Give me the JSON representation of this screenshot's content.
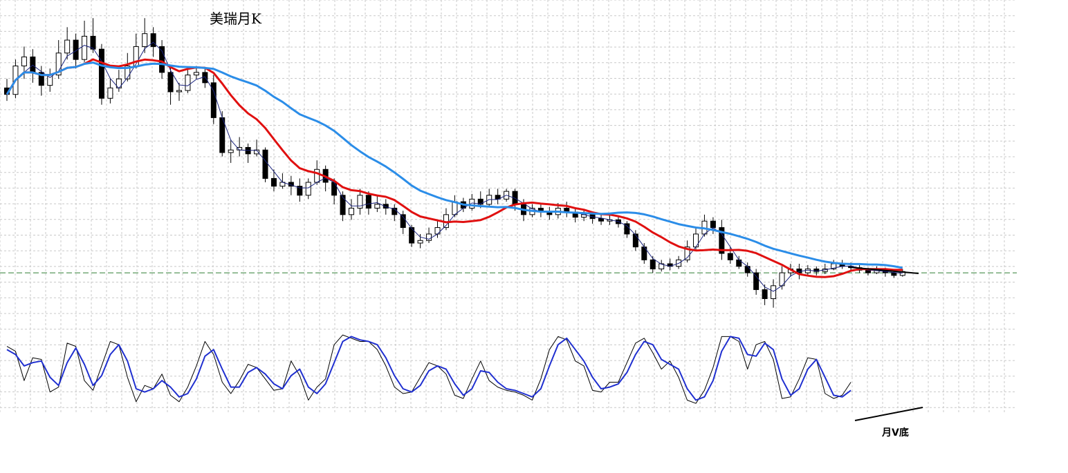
{
  "chart_data": {
    "type": "candlestick",
    "title": "美瑞月K",
    "annotations": [
      {
        "text": "月V底"
      }
    ],
    "grid": true,
    "price_panel": {
      "ylim": [
        1.3,
        24.8
      ],
      "reference_line": 4.5,
      "candles": [
        [
          18.8,
          18.3,
          19.5,
          17.8
        ],
        [
          18.3,
          20.5,
          21.0,
          18.0
        ],
        [
          20.5,
          21.2,
          22.0,
          19.5
        ],
        [
          21.2,
          20.0,
          21.8,
          19.2
        ],
        [
          20.0,
          19.0,
          20.5,
          18.2
        ],
        [
          19.0,
          19.8,
          20.3,
          18.5
        ],
        [
          19.8,
          21.5,
          22.5,
          19.5
        ],
        [
          21.5,
          22.5,
          23.5,
          21.0
        ],
        [
          22.5,
          21.0,
          23.0,
          20.3
        ],
        [
          21.0,
          22.8,
          24.0,
          20.8
        ],
        [
          22.8,
          21.8,
          24.2,
          21.5
        ],
        [
          21.8,
          18.0,
          22.2,
          17.5
        ],
        [
          18.0,
          18.8,
          19.5,
          17.6
        ],
        [
          18.8,
          19.5,
          20.2,
          18.5
        ],
        [
          19.5,
          20.5,
          21.5,
          19.3
        ],
        [
          20.5,
          22.0,
          23.0,
          20.3
        ],
        [
          22.0,
          23.0,
          24.2,
          21.5
        ],
        [
          23.0,
          22.0,
          23.5,
          21.2
        ],
        [
          22.0,
          20.0,
          22.5,
          19.5
        ],
        [
          20.0,
          18.5,
          20.5,
          17.5
        ],
        [
          18.5,
          18.6,
          19.2,
          17.8
        ],
        [
          18.6,
          19.8,
          20.2,
          18.4
        ],
        [
          19.8,
          20.0,
          20.5,
          19.5
        ],
        [
          20.0,
          19.2,
          20.3,
          18.8
        ],
        [
          19.2,
          16.5,
          19.8,
          16.0
        ],
        [
          16.5,
          13.8,
          17.0,
          13.5
        ],
        [
          13.8,
          14.0,
          14.8,
          13.0
        ],
        [
          14.0,
          14.2,
          15.0,
          13.5
        ],
        [
          14.2,
          13.7,
          14.5,
          13.0
        ],
        [
          13.7,
          14.0,
          14.8,
          13.5
        ],
        [
          14.0,
          11.8,
          14.2,
          11.5
        ],
        [
          11.8,
          11.2,
          12.5,
          10.8
        ],
        [
          11.2,
          11.5,
          12.2,
          11.0
        ],
        [
          11.5,
          11.2,
          12.0,
          10.5
        ],
        [
          11.2,
          10.5,
          11.8,
          10.0
        ],
        [
          10.5,
          11.5,
          11.8,
          10.2
        ],
        [
          11.5,
          12.5,
          13.2,
          11.3
        ],
        [
          12.5,
          11.5,
          12.8,
          10.8
        ],
        [
          11.5,
          10.5,
          11.8,
          9.8
        ],
        [
          10.5,
          9.0,
          10.8,
          8.5
        ],
        [
          9.0,
          9.5,
          10.2,
          8.6
        ],
        [
          9.5,
          10.5,
          11.0,
          9.0
        ],
        [
          10.5,
          9.5,
          10.8,
          9.0
        ],
        [
          9.5,
          9.8,
          10.5,
          9.2
        ],
        [
          9.8,
          9.5,
          10.2,
          9.0
        ],
        [
          9.5,
          9.0,
          9.8,
          8.5
        ],
        [
          9.0,
          8.0,
          9.3,
          7.5
        ],
        [
          8.0,
          6.8,
          8.2,
          6.5
        ],
        [
          6.8,
          7.0,
          7.5,
          6.4
        ],
        [
          7.0,
          7.5,
          8.0,
          6.8
        ],
        [
          7.5,
          8.0,
          8.5,
          7.2
        ],
        [
          8.0,
          9.0,
          9.5,
          7.8
        ],
        [
          9.0,
          10.0,
          10.5,
          8.8
        ],
        [
          10.0,
          9.5,
          10.3,
          9.2
        ],
        [
          9.5,
          10.2,
          10.6,
          9.3
        ],
        [
          10.2,
          9.8,
          10.8,
          9.5
        ],
        [
          9.8,
          10.5,
          11.0,
          9.6
        ],
        [
          10.5,
          10.2,
          11.0,
          9.8
        ],
        [
          10.2,
          10.8,
          11.0,
          10.0
        ],
        [
          10.8,
          9.8,
          11.0,
          9.3
        ],
        [
          9.8,
          9.0,
          10.2,
          8.5
        ],
        [
          9.0,
          9.5,
          9.8,
          8.8
        ],
        [
          9.5,
          9.2,
          9.8,
          8.8
        ],
        [
          9.2,
          9.0,
          9.6,
          8.6
        ],
        [
          9.0,
          9.5,
          9.9,
          8.7
        ],
        [
          9.5,
          9.2,
          10.0,
          8.8
        ],
        [
          9.2,
          8.8,
          9.5,
          8.4
        ],
        [
          8.8,
          9.0,
          9.4,
          8.5
        ],
        [
          9.0,
          8.7,
          9.2,
          8.3
        ],
        [
          8.7,
          8.5,
          9.0,
          8.2
        ],
        [
          8.5,
          8.6,
          9.0,
          8.2
        ],
        [
          8.6,
          8.3,
          8.9,
          8.0
        ],
        [
          8.3,
          7.5,
          8.5,
          7.2
        ],
        [
          7.5,
          6.5,
          7.8,
          6.2
        ],
        [
          6.5,
          5.5,
          6.8,
          5.2
        ],
        [
          5.5,
          4.8,
          5.8,
          4.5
        ],
        [
          4.8,
          5.2,
          5.5,
          4.6
        ],
        [
          5.2,
          5.0,
          5.6,
          4.7
        ],
        [
          5.0,
          5.5,
          5.8,
          4.8
        ],
        [
          5.5,
          6.5,
          7.0,
          5.3
        ],
        [
          6.5,
          7.5,
          8.0,
          6.2
        ],
        [
          7.5,
          8.5,
          9.0,
          7.3
        ],
        [
          8.5,
          8.0,
          8.8,
          7.5
        ],
        [
          8.0,
          6.0,
          8.6,
          5.5
        ],
        [
          6.0,
          5.5,
          6.5,
          5.2
        ],
        [
          5.5,
          5.0,
          5.8,
          4.8
        ],
        [
          5.0,
          4.5,
          5.3,
          4.2
        ],
        [
          4.5,
          3.2,
          4.8,
          2.8
        ],
        [
          3.2,
          2.5,
          3.6,
          2.0
        ],
        [
          2.5,
          3.5,
          4.0,
          1.8
        ],
        [
          3.5,
          4.5,
          5.0,
          3.2
        ],
        [
          4.5,
          4.8,
          5.2,
          4.2
        ],
        [
          4.8,
          4.5,
          5.2,
          4.0
        ],
        [
          4.5,
          4.8,
          5.1,
          4.3
        ],
        [
          4.8,
          4.6,
          5.0,
          4.3
        ],
        [
          4.6,
          4.8,
          5.2,
          4.4
        ],
        [
          4.8,
          5.2,
          5.5,
          4.7
        ],
        [
          5.2,
          5.0,
          5.5,
          4.8
        ],
        [
          5.0,
          4.9,
          5.3,
          4.7
        ],
        [
          4.9,
          4.7,
          5.1,
          4.5
        ],
        [
          4.7,
          4.5,
          4.9,
          4.3
        ],
        [
          4.5,
          4.8,
          5.0,
          4.4
        ],
        [
          4.8,
          4.5,
          4.9,
          4.2
        ],
        [
          4.5,
          4.3,
          4.7,
          4.1
        ],
        [
          4.3,
          4.6,
          4.8,
          4.2
        ]
      ]
    },
    "oscillator_panel": {
      "ylim": [
        0,
        100
      ],
      "k": [
        80,
        74,
        38,
        66,
        64,
        24,
        30,
        84,
        80,
        38,
        26,
        56,
        86,
        82,
        42,
        12,
        32,
        28,
        46,
        20,
        12,
        30,
        56,
        86,
        70,
        36,
        22,
        38,
        58,
        54,
        40,
        26,
        28,
        62,
        44,
        14,
        30,
        40,
        82,
        94,
        90,
        86,
        86,
        76,
        56,
        30,
        22,
        24,
        42,
        60,
        56,
        46,
        20,
        16,
        40,
        62,
        38,
        30,
        26,
        24,
        20,
        14,
        40,
        76,
        92,
        88,
        62,
        56,
        26,
        24,
        36,
        36,
        60,
        84,
        90,
        72,
        52,
        62,
        42,
        14,
        10,
        26,
        54,
        92,
        92,
        86,
        52,
        82,
        86,
        64,
        16,
        18,
        40,
        66,
        64,
        22,
        16,
        20,
        36
      ],
      "d": [
        76,
        70,
        56,
        60,
        62,
        42,
        32,
        60,
        78,
        58,
        32,
        44,
        70,
        82,
        62,
        28,
        24,
        28,
        38,
        30,
        18,
        22,
        40,
        68,
        76,
        52,
        30,
        30,
        48,
        54,
        46,
        34,
        28,
        44,
        52,
        30,
        22,
        34,
        60,
        86,
        92,
        88,
        86,
        82,
        66,
        44,
        28,
        24,
        32,
        50,
        56,
        52,
        34,
        20,
        28,
        50,
        48,
        36,
        28,
        26,
        22,
        18,
        28,
        56,
        82,
        90,
        76,
        62,
        42,
        28,
        30,
        34,
        48,
        70,
        86,
        82,
        64,
        58,
        52,
        28,
        14,
        18,
        38,
        74,
        92,
        90,
        70,
        68,
        84,
        76,
        40,
        20,
        28,
        52,
        64,
        42,
        20,
        18,
        26
      ]
    }
  }
}
